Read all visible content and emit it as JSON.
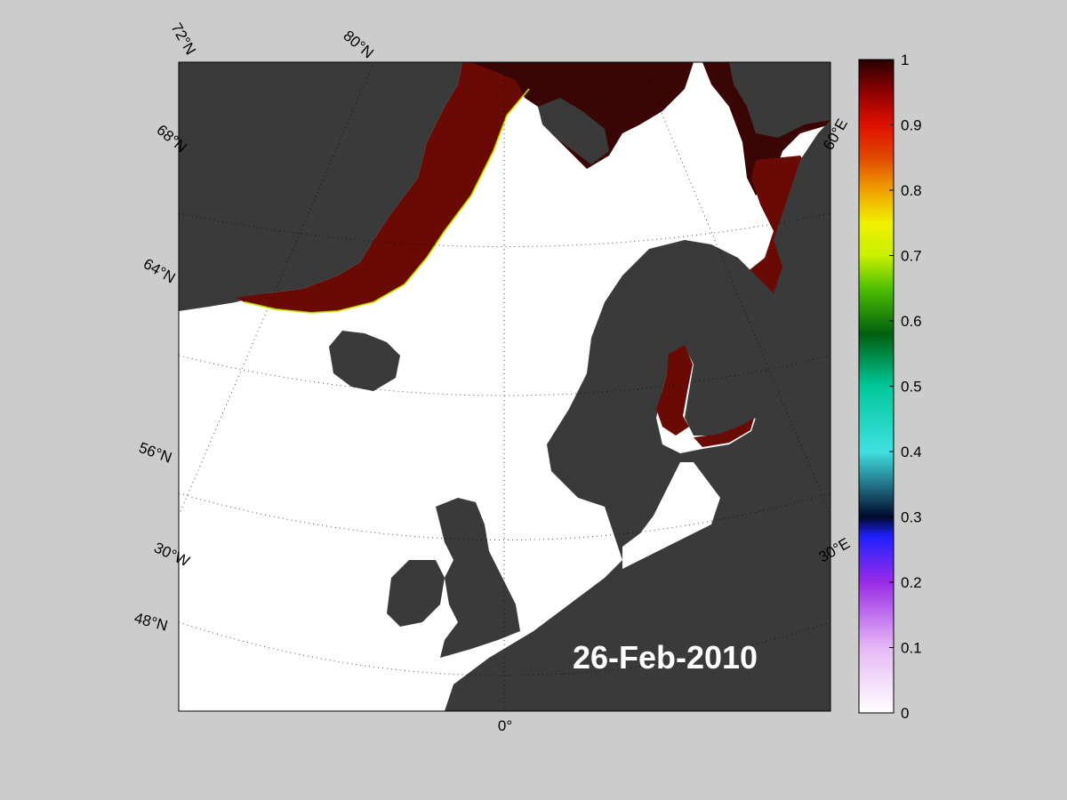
{
  "map": {
    "date_label": "26-Feb-2010",
    "land_color": "#3a3a3a",
    "ocean_color": "#ffffff",
    "lat_labels": [
      "72°N",
      "80°N",
      "68°N",
      "64°N",
      "56°N",
      "48°N"
    ],
    "lon_labels": [
      "60°E",
      "30°E",
      "30°W",
      "0°"
    ]
  },
  "colorbar": {
    "ticks": [
      "1",
      "0.9",
      "0.8",
      "0.7",
      "0.6",
      "0.5",
      "0.4",
      "0.3",
      "0.2",
      "0.1",
      "0"
    ],
    "range": [
      0,
      1
    ]
  }
}
